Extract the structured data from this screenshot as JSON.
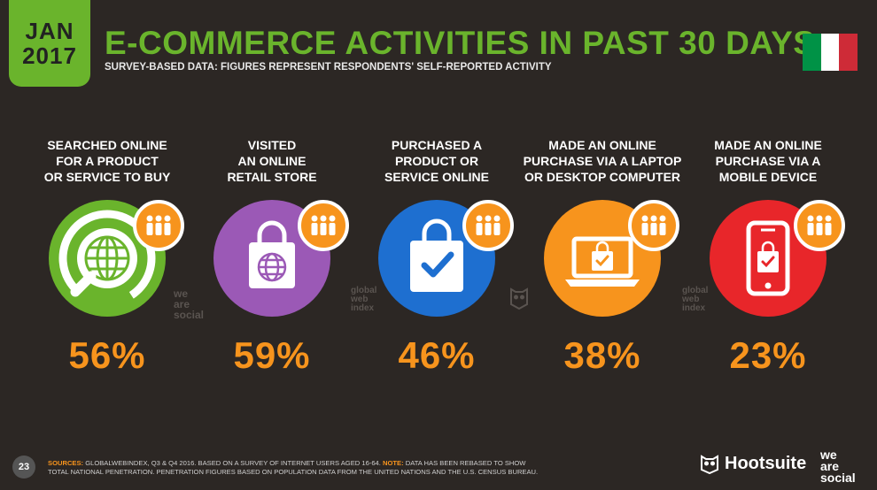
{
  "header": {
    "date_month": "JAN",
    "date_year": "2017",
    "title": "E-COMMERCE ACTIVITIES IN PAST 30 DAYS",
    "subtitle": "SURVEY-BASED DATA: FIGURES REPRESENT RESPONDENTS' SELF-REPORTED ACTIVITY",
    "flag_colors": [
      "#009246",
      "#ffffff",
      "#ce2b37"
    ]
  },
  "stats": [
    {
      "label_lines": [
        "SEARCHED ONLINE",
        "FOR A PRODUCT",
        "OR SERVICE TO BUY"
      ],
      "value": "56%",
      "color": "#6ab42c",
      "icon": "globe-search-icon"
    },
    {
      "label_lines": [
        "VISITED",
        "AN ONLINE",
        "RETAIL STORE"
      ],
      "value": "59%",
      "color": "#9b59b6",
      "icon": "shopping-bag-globe-icon"
    },
    {
      "label_lines": [
        "PURCHASED A",
        "PRODUCT OR",
        "SERVICE ONLINE"
      ],
      "value": "46%",
      "color": "#1e6fd0",
      "icon": "shopping-bag-check-icon"
    },
    {
      "label_lines": [
        "MADE AN ONLINE",
        "PURCHASE VIA A LAPTOP",
        "OR DESKTOP COMPUTER"
      ],
      "value": "38%",
      "color": "#f7941d",
      "icon": "laptop-bag-icon"
    },
    {
      "label_lines": [
        "MADE AN ONLINE",
        "PURCHASE VIA A",
        "MOBILE DEVICE"
      ],
      "value": "23%",
      "color": "#e8262a",
      "icon": "mobile-bag-icon"
    }
  ],
  "watermarks": {
    "we_are_social": [
      "we",
      "are",
      "social"
    ],
    "global_web_index": [
      "global",
      "web",
      "index"
    ]
  },
  "footer": {
    "page_number": "23",
    "sources_label": "SOURCES:",
    "sources_text": " GLOBALWEBINDEX, Q3 & Q4 2016. BASED ON A SURVEY OF INTERNET USERS AGED 16-64. ",
    "note_label": "NOTE:",
    "note_text": " DATA HAS BEEN REBASED TO SHOW TOTAL NATIONAL PENETRATION. PENETRATION FIGURES BASED ON POPULATION DATA FROM THE UNITED NATIONS AND THE U.S. CENSUS BUREAU.",
    "brand_hootsuite": "Hootsuite",
    "brand_wearesocial": [
      "we",
      "are",
      "social"
    ]
  }
}
